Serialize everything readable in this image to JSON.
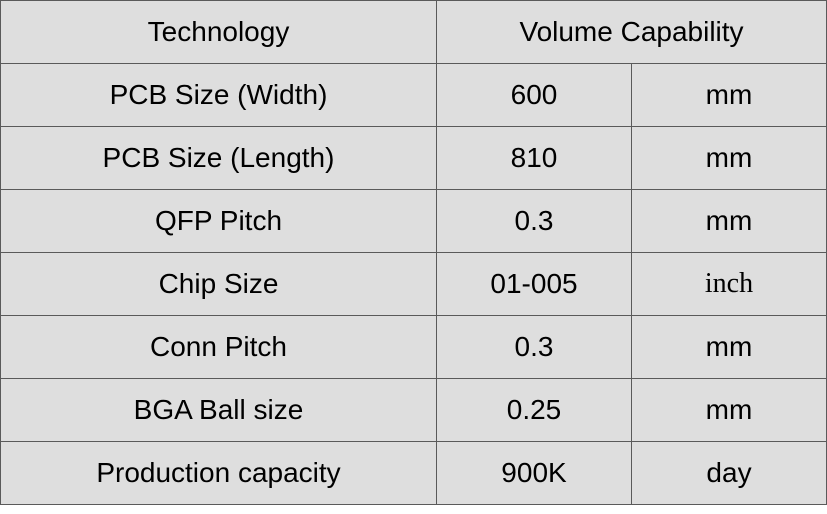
{
  "table": {
    "header": [
      "Technology",
      "Volume Capability"
    ],
    "rows": [
      [
        "PCB Size (Width)",
        "600",
        "mm"
      ],
      [
        "PCB Size (Length)",
        "810",
        "mm"
      ],
      [
        "QFP Pitch",
        "0.3",
        "mm"
      ],
      [
        "Chip Size",
        "01-005",
        "inch"
      ],
      [
        "Conn Pitch",
        "0.3",
        "mm"
      ],
      [
        "BGA Ball size",
        "0.25",
        "mm"
      ],
      [
        "Production capacity",
        "900K",
        "day"
      ]
    ]
  }
}
